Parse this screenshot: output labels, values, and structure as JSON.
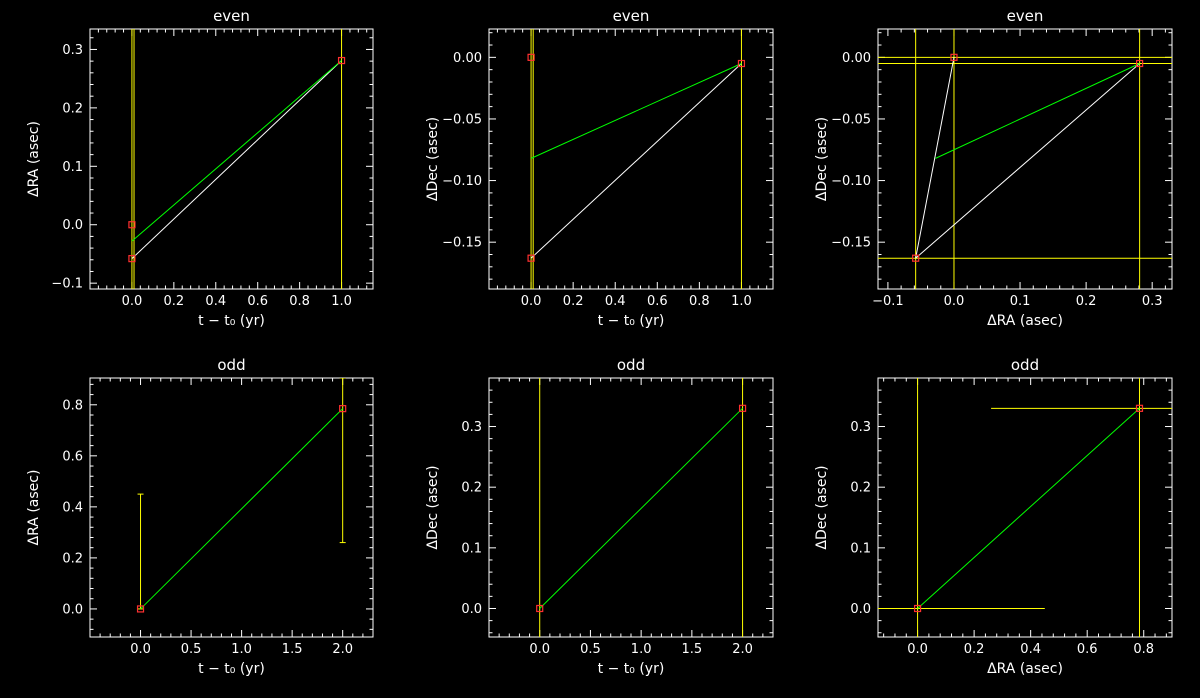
{
  "colors": {
    "background": "#000000",
    "axes": "#ffffff",
    "errorbar": "#ffff00",
    "fit": "#00ff00",
    "track": "#ffffff",
    "marker": "#ff3030"
  },
  "chart_data": [
    {
      "type": "scatter",
      "title": "even",
      "xlabel": "t − t₀ (yr)",
      "ylabel": "ΔRA (asec)",
      "xlim": [
        -0.2,
        1.15
      ],
      "ylim": [
        -0.11,
        0.335
      ],
      "xticks": [
        0.0,
        0.2,
        0.4,
        0.6,
        0.8,
        1.0
      ],
      "xtick_labels": [
        "0.0",
        "0.2",
        "0.4",
        "0.6",
        "0.8",
        "1.0"
      ],
      "yticks": [
        -0.1,
        0.0,
        0.1,
        0.2,
        0.3
      ],
      "ytick_labels": [
        "−0.1",
        "0.0",
        "0.1",
        "0.2",
        "0.3"
      ],
      "points": [
        {
          "x": 0.0,
          "y": 0.0
        },
        {
          "x": 0.0,
          "y": -0.058
        },
        {
          "x": 1.0,
          "y": 0.281
        }
      ],
      "fit_line": [
        [
          0.0,
          -0.028
        ],
        [
          1.0,
          0.281
        ]
      ],
      "track_line": [
        [
          0.0,
          -0.058
        ],
        [
          1.0,
          0.281
        ]
      ],
      "vertical_lines_x": [
        0.0,
        0.01,
        1.0
      ]
    },
    {
      "type": "scatter",
      "title": "even",
      "xlabel": "t − t₀ (yr)",
      "ylabel": "ΔDec (asec)",
      "xlim": [
        -0.2,
        1.15
      ],
      "ylim": [
        -0.188,
        0.023
      ],
      "xticks": [
        0.0,
        0.2,
        0.4,
        0.6,
        0.8,
        1.0
      ],
      "xtick_labels": [
        "0.0",
        "0.2",
        "0.4",
        "0.6",
        "0.8",
        "1.0"
      ],
      "yticks": [
        -0.15,
        -0.1,
        -0.05,
        0.0
      ],
      "ytick_labels": [
        "−0.15",
        "−0.10",
        "−0.05",
        "0.00"
      ],
      "points": [
        {
          "x": 0.0,
          "y": 0.0
        },
        {
          "x": 0.0,
          "y": -0.163
        },
        {
          "x": 1.0,
          "y": -0.005
        }
      ],
      "fit_line": [
        [
          0.0,
          -0.082
        ],
        [
          1.0,
          -0.005
        ]
      ],
      "track_line": [
        [
          0.0,
          -0.163
        ],
        [
          1.0,
          -0.005
        ]
      ],
      "vertical_lines_x": [
        0.0,
        0.01,
        1.0
      ]
    },
    {
      "type": "scatter",
      "title": "even",
      "xlabel": "ΔRA (asec)",
      "ylabel": "ΔDec (asec)",
      "xlim": [
        -0.115,
        0.33
      ],
      "ylim": [
        -0.188,
        0.023
      ],
      "xticks": [
        -0.1,
        0.0,
        0.1,
        0.2,
        0.3
      ],
      "xtick_labels": [
        "−0.1",
        "0.0",
        "0.1",
        "0.2",
        "0.3"
      ],
      "yticks": [
        -0.15,
        -0.1,
        -0.05,
        0.0
      ],
      "ytick_labels": [
        "−0.15",
        "−0.10",
        "−0.05",
        "0.00"
      ],
      "points": [
        {
          "x": 0.0,
          "y": 0.0
        },
        {
          "x": -0.058,
          "y": -0.163
        },
        {
          "x": 0.281,
          "y": -0.005
        }
      ],
      "fit_line": [
        [
          -0.028,
          -0.082
        ],
        [
          0.281,
          -0.005
        ]
      ],
      "track_segments": [
        [
          [
            -0.058,
            -0.163
          ],
          [
            0.0,
            0.0
          ]
        ],
        [
          [
            -0.058,
            -0.163
          ],
          [
            0.281,
            -0.005
          ]
        ]
      ],
      "vertical_lines_x": [
        -0.058,
        0.0,
        0.281
      ],
      "horizontal_lines_y": [
        0.0,
        -0.005,
        -0.163
      ]
    },
    {
      "type": "scatter",
      "title": "odd",
      "xlabel": "t − t₀ (yr)",
      "ylabel": "ΔRA (asec)",
      "xlim": [
        -0.5,
        2.3
      ],
      "ylim": [
        -0.11,
        0.905
      ],
      "xticks": [
        0.0,
        0.5,
        1.0,
        1.5,
        2.0
      ],
      "xtick_labels": [
        "0.0",
        "0.5",
        "1.0",
        "1.5",
        "2.0"
      ],
      "yticks": [
        0.0,
        0.2,
        0.4,
        0.6,
        0.8
      ],
      "ytick_labels": [
        "0.0",
        "0.2",
        "0.4",
        "0.6",
        "0.8"
      ],
      "points": [
        {
          "x": 0.0,
          "y": 0.0
        },
        {
          "x": 2.0,
          "y": 0.785
        }
      ],
      "fit_line": [
        [
          0.0,
          0.0
        ],
        [
          2.0,
          0.785
        ]
      ],
      "error_bars_y": [
        {
          "x": 0.0,
          "low": 0.0,
          "high": 0.45
        },
        {
          "x": 2.0,
          "low": 0.26,
          "high": 0.905
        }
      ]
    },
    {
      "type": "scatter",
      "title": "odd",
      "xlabel": "t − t₀ (yr)",
      "ylabel": "ΔDec (asec)",
      "xlim": [
        -0.5,
        2.3
      ],
      "ylim": [
        -0.047,
        0.38
      ],
      "xticks": [
        0.0,
        0.5,
        1.0,
        1.5,
        2.0
      ],
      "xtick_labels": [
        "0.0",
        "0.5",
        "1.0",
        "1.5",
        "2.0"
      ],
      "yticks": [
        0.0,
        0.1,
        0.2,
        0.3
      ],
      "ytick_labels": [
        "0.0",
        "0.1",
        "0.2",
        "0.3"
      ],
      "points": [
        {
          "x": 0.0,
          "y": 0.0
        },
        {
          "x": 2.0,
          "y": 0.33
        }
      ],
      "fit_line": [
        [
          0.0,
          0.0
        ],
        [
          2.0,
          0.33
        ]
      ],
      "vertical_lines_x": [
        0.0,
        2.0
      ]
    },
    {
      "type": "scatter",
      "title": "odd",
      "xlabel": "ΔRA (asec)",
      "ylabel": "ΔDec (asec)",
      "xlim": [
        -0.14,
        0.9
      ],
      "ylim": [
        -0.047,
        0.38
      ],
      "xticks": [
        0.0,
        0.2,
        0.4,
        0.6,
        0.8
      ],
      "xtick_labels": [
        "0.0",
        "0.2",
        "0.4",
        "0.6",
        "0.8"
      ],
      "yticks": [
        0.0,
        0.1,
        0.2,
        0.3
      ],
      "ytick_labels": [
        "0.0",
        "0.1",
        "0.2",
        "0.3"
      ],
      "points": [
        {
          "x": 0.0,
          "y": 0.0
        },
        {
          "x": 0.785,
          "y": 0.33
        }
      ],
      "fit_line": [
        [
          0.0,
          0.0
        ],
        [
          0.785,
          0.33
        ]
      ],
      "vertical_lines_x": [
        0.0,
        0.785
      ],
      "horizontal_segments": [
        {
          "y": 0.0,
          "x0": -0.14,
          "x1": 0.45
        },
        {
          "y": 0.33,
          "x0": 0.26,
          "x1": 0.9
        }
      ]
    }
  ]
}
